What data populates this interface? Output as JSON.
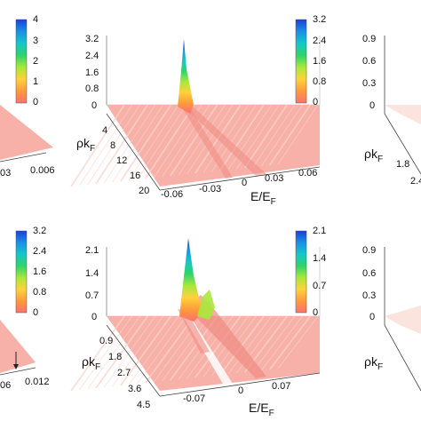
{
  "chart_data": [
    {
      "type": "surface",
      "panel": "top-left (cropped)",
      "xlabel": "",
      "ylabel": "",
      "x_ticks": [
        "03",
        "0.006"
      ],
      "colorbar": {
        "ticks": [
          "4",
          "3",
          "2",
          "1",
          "0"
        ],
        "range": [
          0,
          4
        ]
      }
    },
    {
      "type": "surface",
      "panel": "top-middle",
      "xlabel": "E/E",
      "xlabel_sub": "F",
      "ylabel": "ρk",
      "ylabel_sub": "F",
      "x_ticks": [
        "-0.06",
        "-0.03",
        "0",
        "0.03",
        "0.06"
      ],
      "y_ticks": [
        "4",
        "8",
        "12",
        "16",
        "20"
      ],
      "z_ticks": [
        "3.2",
        "2.4",
        "1.6",
        "0.8",
        "0"
      ],
      "zlim": [
        0,
        3.2
      ],
      "peak": {
        "E": -0.01,
        "rhokF": 2,
        "z": 3.2
      },
      "colorbar": {
        "ticks": [
          "3.2",
          "2.4",
          "1.6",
          "0.8",
          "0"
        ],
        "range": [
          0,
          3.2
        ]
      }
    },
    {
      "type": "surface",
      "panel": "top-right (cropped)",
      "ylabel": "ρk",
      "ylabel_sub": "F",
      "y_ticks": [
        "1.8",
        "2.4"
      ],
      "z_ticks": [
        "0.9",
        "0.6",
        "0.3",
        "0"
      ]
    },
    {
      "type": "surface",
      "panel": "bottom-left (cropped)",
      "x_ticks": [
        "06",
        "0.012"
      ],
      "colorbar": {
        "ticks": [
          "3.2",
          "2.4",
          "1.6",
          "0.8",
          "0"
        ],
        "range": [
          0,
          3.2
        ]
      }
    },
    {
      "type": "surface",
      "panel": "bottom-middle",
      "xlabel": "E/E",
      "xlabel_sub": "F",
      "ylabel": "ρk",
      "ylabel_sub": "F",
      "x_ticks": [
        "-0.07",
        "0",
        "0.07"
      ],
      "y_ticks": [
        "0.9",
        "1.8",
        "2.7",
        "3.6",
        "4.5"
      ],
      "z_ticks": [
        "2.1",
        "1.4",
        "0.7",
        "0"
      ],
      "zlim": [
        0,
        2.1
      ],
      "peak": {
        "E": -0.02,
        "rhokF": 0.5,
        "z": 2.1
      },
      "colorbar": {
        "ticks": [
          "2.1",
          "1.4",
          "0.7",
          "0"
        ],
        "range": [
          0,
          2.1
        ]
      }
    },
    {
      "type": "surface",
      "panel": "bottom-right (cropped)",
      "ylabel": "ρk",
      "ylabel_sub": "F",
      "z_ticks": [
        "0.9",
        "0.6",
        "0.3",
        "0"
      ]
    }
  ],
  "colors": {
    "colormap": [
      "#ff6f6f",
      "#ff9a3c",
      "#ffd23a",
      "#a8e83a",
      "#2fd36a",
      "#14c8c8",
      "#1a8fe8",
      "#1a3fd8"
    ],
    "surface_base": "#f7b1a8",
    "surface_stripe": "#fbd3cc",
    "axis": "#444444"
  }
}
